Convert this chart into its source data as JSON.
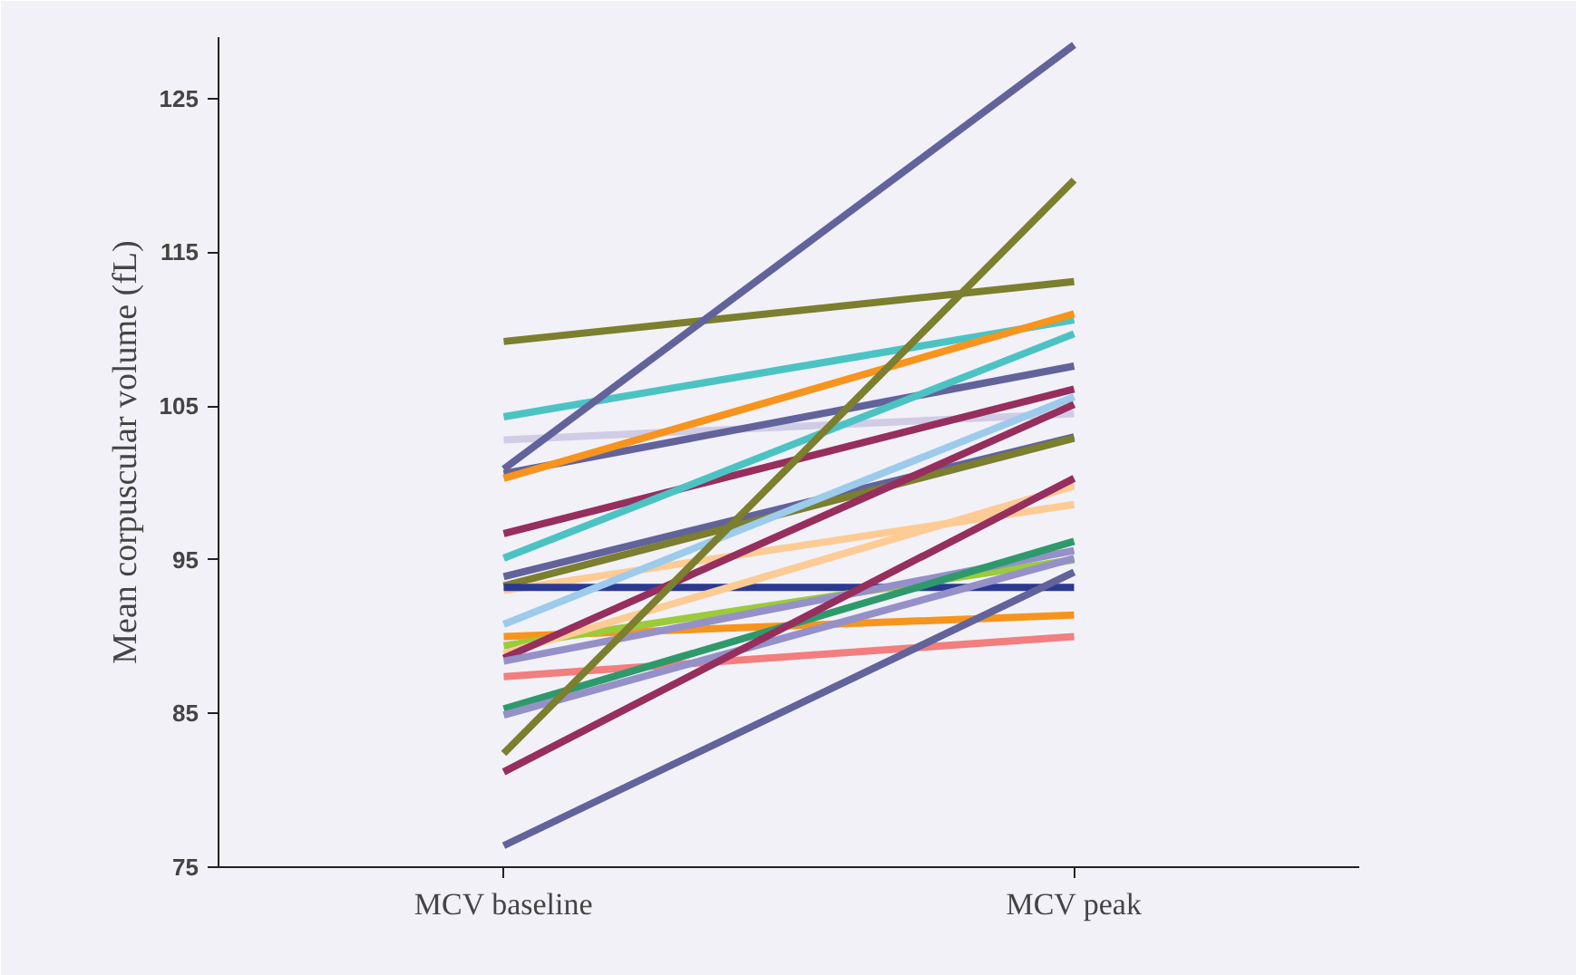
{
  "chart_data": {
    "type": "line",
    "ylabel": "Mean corpuscular volume (fL)",
    "categories": [
      "MCV baseline",
      "MCV peak"
    ],
    "ylim": [
      75,
      129
    ],
    "yticks": [
      75,
      85,
      95,
      105,
      115,
      125
    ],
    "grid": false,
    "series": [
      {
        "color": "#7b7f2e",
        "values": [
          109.2,
          113.1
        ]
      },
      {
        "color": "#4cc3c3",
        "values": [
          104.3,
          110.6
        ]
      },
      {
        "color": "#d0cce6",
        "values": [
          102.8,
          104.5
        ]
      },
      {
        "color": "#62639b",
        "values": [
          100.9,
          128.5
        ]
      },
      {
        "color": "#62639b",
        "values": [
          100.6,
          107.6
        ]
      },
      {
        "color": "#f7941d",
        "values": [
          100.3,
          111.0
        ]
      },
      {
        "color": "#962e5e",
        "values": [
          96.7,
          106.1
        ]
      },
      {
        "color": "#4cc3c3",
        "values": [
          95.1,
          109.7
        ]
      },
      {
        "color": "#62639b",
        "values": [
          93.9,
          103.0
        ]
      },
      {
        "color": "#7b7f2e",
        "values": [
          93.3,
          102.9
        ]
      },
      {
        "color": "#fdcb94",
        "values": [
          93.0,
          98.6
        ]
      },
      {
        "color": "#2b3990",
        "values": [
          93.2,
          93.2
        ]
      },
      {
        "color": "#9ccbeb",
        "values": [
          90.8,
          105.6
        ]
      },
      {
        "color": "#f7941d",
        "values": [
          90.0,
          91.4
        ]
      },
      {
        "color": "#9bcb3b",
        "values": [
          89.4,
          95.0
        ]
      },
      {
        "color": "#fdcb94",
        "values": [
          88.9,
          99.8
        ]
      },
      {
        "color": "#962e5e",
        "values": [
          88.6,
          105.1
        ]
      },
      {
        "color": "#9590c8",
        "values": [
          88.4,
          95.6
        ]
      },
      {
        "color": "#f27e7e",
        "values": [
          87.4,
          90.0
        ]
      },
      {
        "color": "#2e9a6c",
        "values": [
          85.3,
          96.2
        ]
      },
      {
        "color": "#9590c8",
        "values": [
          84.9,
          95.1
        ]
      },
      {
        "color": "#7b7f2e",
        "values": [
          82.4,
          119.7
        ]
      },
      {
        "color": "#962e5e",
        "values": [
          81.2,
          100.3
        ]
      },
      {
        "color": "#62639b",
        "values": [
          76.4,
          94.2
        ]
      }
    ]
  }
}
